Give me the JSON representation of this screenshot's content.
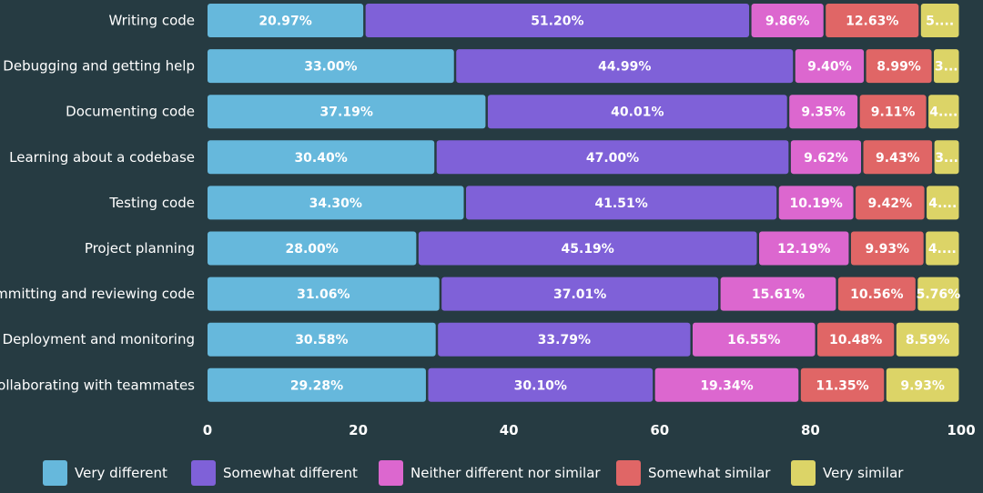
{
  "chart_data": {
    "type": "bar",
    "orientation": "horizontal",
    "stacked": true,
    "categories": [
      "Writing code",
      "Debugging and getting help",
      "Documenting code",
      "Learning about a codebase",
      "Testing code",
      "Project planning",
      "Committing and reviewing code",
      "Deployment and monitoring",
      "Collaborating with teammates"
    ],
    "series": [
      {
        "name": "Very different",
        "color": "#66b8dc",
        "values": [
          20.97,
          33.0,
          37.19,
          30.4,
          34.3,
          28.0,
          31.06,
          30.58,
          29.28
        ],
        "labels": [
          "20.97%",
          "33.00%",
          "37.19%",
          "30.40%",
          "34.30%",
          "28.00%",
          "31.06%",
          "30.58%",
          "29.28%"
        ]
      },
      {
        "name": "Somewhat different",
        "color": "#7f61d8",
        "values": [
          51.2,
          44.99,
          40.01,
          47.0,
          41.51,
          45.19,
          37.01,
          33.79,
          30.1
        ],
        "labels": [
          "51.20%",
          "44.99%",
          "40.01%",
          "47.00%",
          "41.51%",
          "45.19%",
          "37.01%",
          "33.79%",
          "30.10%"
        ]
      },
      {
        "name": "Neither different nor similar",
        "color": "#dc67cf",
        "values": [
          9.86,
          9.4,
          9.35,
          9.62,
          10.19,
          12.19,
          15.61,
          16.55,
          19.34
        ],
        "labels": [
          "9.86%",
          "9.40%",
          "9.35%",
          "9.62%",
          "10.19%",
          "12.19%",
          "15.61%",
          "16.55%",
          "19.34%"
        ]
      },
      {
        "name": "Somewhat similar",
        "color": "#e06666",
        "values": [
          12.63,
          8.99,
          9.11,
          9.43,
          9.42,
          9.93,
          10.56,
          10.48,
          11.35
        ],
        "labels": [
          "12.63%",
          "8.99%",
          "9.11%",
          "9.43%",
          "9.42%",
          "9.93%",
          "10.56%",
          "10.48%",
          "11.35%"
        ]
      },
      {
        "name": "Very similar",
        "color": "#dcd467",
        "values": [
          5.34,
          3.62,
          4.34,
          3.55,
          4.58,
          4.69,
          5.76,
          8.59,
          9.93
        ],
        "labels": [
          "5....",
          "3...",
          "4....",
          "3...",
          "4....",
          "4....",
          "5.76%",
          "8.59%",
          "9.93%"
        ]
      }
    ],
    "xlim": [
      0,
      100
    ],
    "xticks": [
      0,
      20,
      40,
      60,
      80,
      100
    ],
    "xtick_labels": [
      "0",
      "20",
      "40",
      "60",
      "80",
      "100"
    ],
    "title": "",
    "xlabel": "",
    "ylabel": "",
    "grid": false,
    "legend_position": "bottom"
  }
}
